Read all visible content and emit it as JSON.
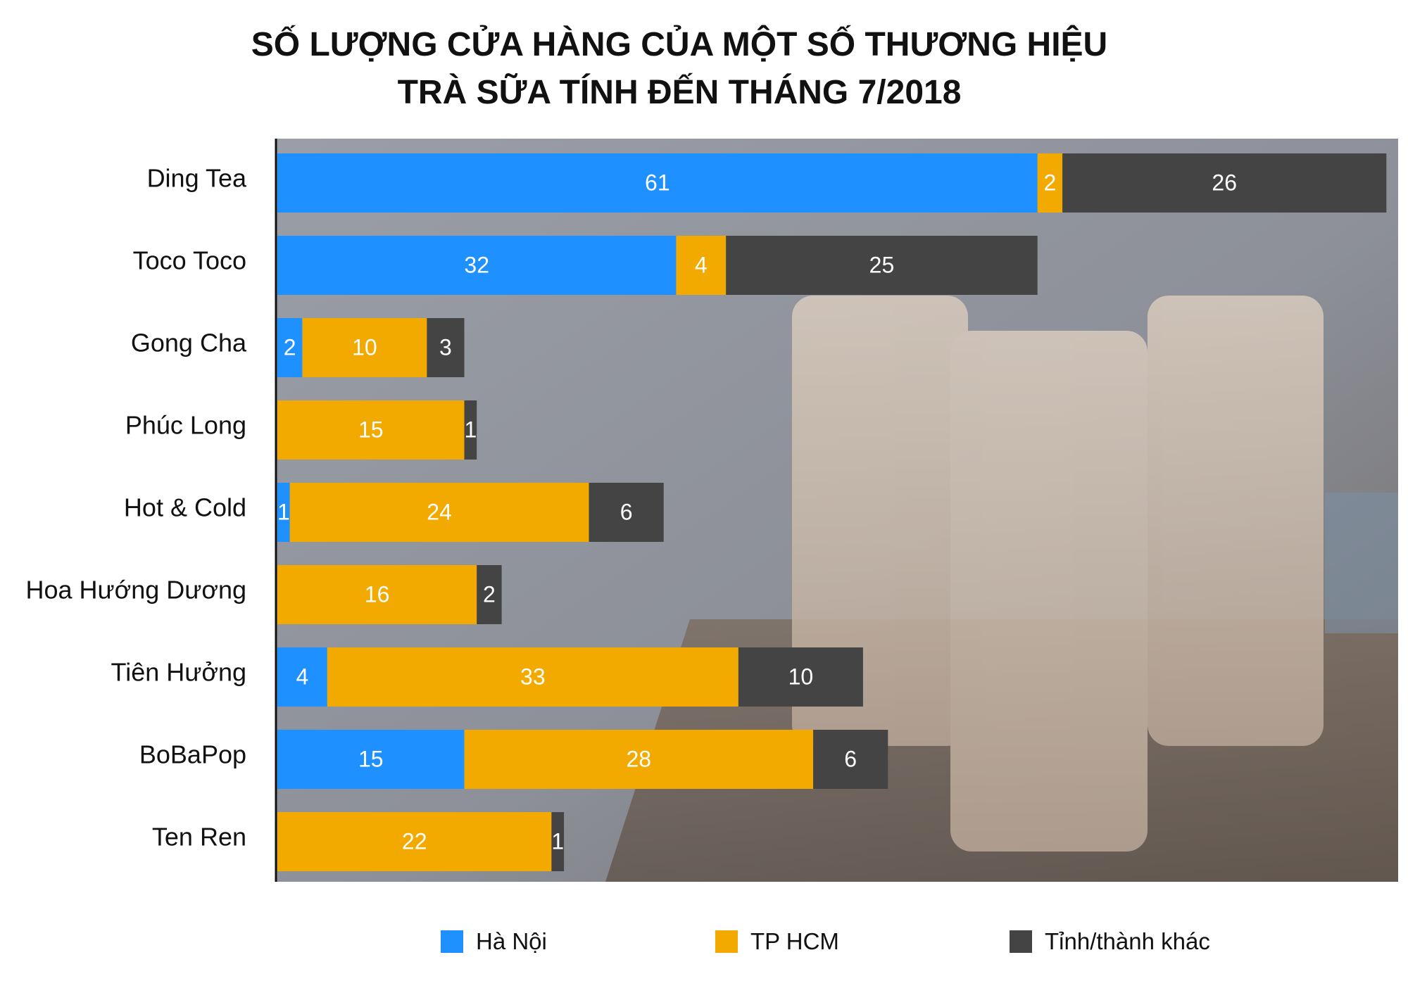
{
  "title_line1": "SỐ LƯỢNG CỬA HÀNG CỦA MỘT SỐ THƯƠNG HIỆU",
  "title_line2": "TRÀ SỮA TÍNH ĐẾN THÁNG 7/2018",
  "colors": {
    "ha_noi": "#1e90ff",
    "tp_hcm": "#f2a900",
    "khac": "#444444"
  },
  "chart_data": {
    "type": "bar",
    "orientation": "horizontal",
    "stacked": true,
    "title": "SỐ LƯỢNG CỬA HÀNG CỦA MỘT SỐ THƯƠNG HIỆU TRÀ SỮA TÍNH ĐẾN THÁNG 7/2018",
    "categories": [
      "Ding Tea",
      "Toco Toco",
      "Gong Cha",
      "Phúc Long",
      "Hot & Cold",
      "Hoa Hướng Dương",
      "Tiên Hưởng",
      "BoBaPop",
      "Ten Ren"
    ],
    "series": [
      {
        "name": "Hà Nội",
        "color": "#1e90ff",
        "values": [
          61,
          32,
          2,
          0,
          1,
          0,
          4,
          15,
          0
        ]
      },
      {
        "name": "TP HCM",
        "color": "#f2a900",
        "values": [
          2,
          4,
          10,
          15,
          24,
          16,
          33,
          28,
          22
        ]
      },
      {
        "name": "Tỉnh/thành khác",
        "color": "#444444",
        "values": [
          26,
          25,
          3,
          1,
          6,
          2,
          10,
          6,
          1
        ]
      }
    ],
    "legend_position": "bottom",
    "xlim": [
      0,
      89
    ],
    "grid": false
  }
}
